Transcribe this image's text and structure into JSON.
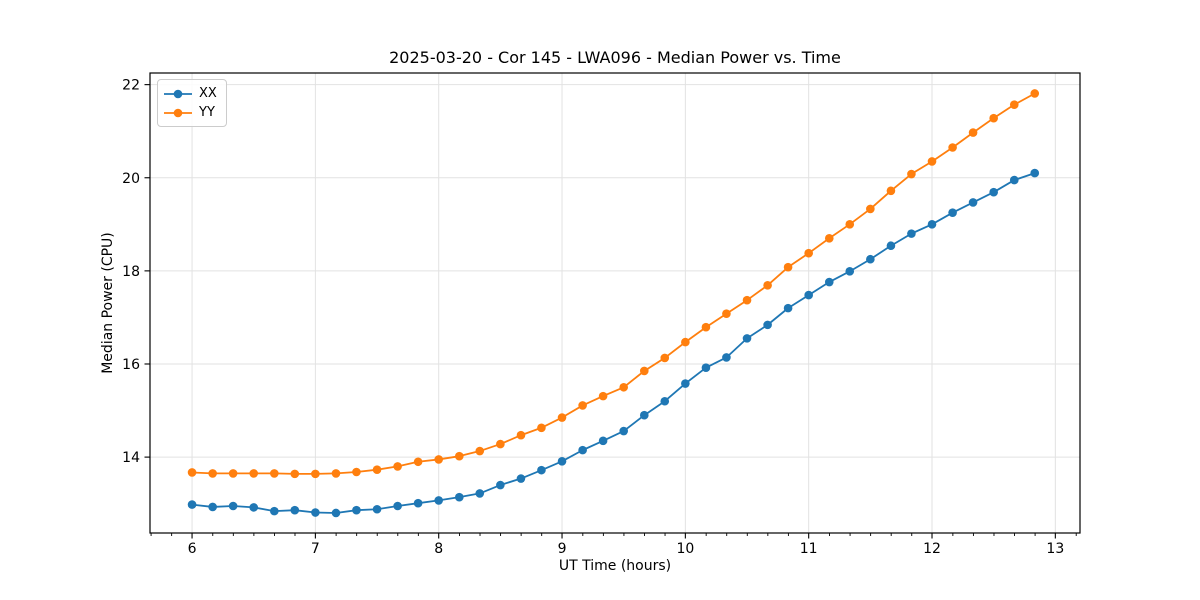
{
  "chart_data": {
    "type": "line",
    "title": "2025-03-20 - Cor 145 - LWA096 - Median Power vs. Time",
    "xlabel": "UT Time (hours)",
    "ylabel": "Median Power (CPU)",
    "grid": true,
    "legend_position": "upper left",
    "xlim": [
      5.659,
      13.2
    ],
    "ylim": [
      12.37,
      22.25
    ],
    "x_ticks": [
      6,
      7,
      8,
      9,
      10,
      11,
      12,
      13
    ],
    "y_ticks": [
      14,
      16,
      18,
      20,
      22
    ],
    "x_minor_tick_step": 0.1667,
    "x": [
      6.0,
      6.167,
      6.333,
      6.5,
      6.667,
      6.833,
      7.0,
      7.167,
      7.333,
      7.5,
      7.667,
      7.833,
      8.0,
      8.167,
      8.333,
      8.5,
      8.667,
      8.833,
      9.0,
      9.167,
      9.333,
      9.5,
      9.667,
      9.833,
      10.0,
      10.167,
      10.333,
      10.5,
      10.667,
      10.833,
      11.0,
      11.167,
      11.333,
      11.5,
      11.667,
      11.833,
      12.0,
      12.167,
      12.333,
      12.5,
      12.667,
      12.833
    ],
    "series": [
      {
        "name": "XX",
        "color": "#1f77b4",
        "values": [
          12.98,
          12.93,
          12.95,
          12.92,
          12.84,
          12.86,
          12.81,
          12.8,
          12.86,
          12.88,
          12.95,
          13.01,
          13.07,
          13.14,
          13.22,
          13.4,
          13.54,
          13.72,
          13.91,
          14.15,
          14.35,
          14.56,
          14.9,
          15.2,
          15.58,
          15.92,
          16.14,
          16.55,
          16.84,
          17.2,
          17.48,
          17.76,
          17.99,
          18.25,
          18.54,
          18.8,
          19.0,
          19.25,
          19.47,
          19.69,
          19.95,
          20.1
        ]
      },
      {
        "name": "YY",
        "color": "#ff7f0e",
        "values": [
          13.67,
          13.65,
          13.65,
          13.65,
          13.65,
          13.64,
          13.64,
          13.65,
          13.68,
          13.73,
          13.8,
          13.9,
          13.95,
          14.02,
          14.13,
          14.28,
          14.47,
          14.63,
          14.85,
          15.11,
          15.31,
          15.5,
          15.85,
          16.13,
          16.47,
          16.79,
          17.08,
          17.37,
          17.69,
          18.08,
          18.38,
          18.7,
          19.0,
          19.33,
          19.72,
          20.08,
          20.35,
          20.65,
          20.97,
          21.28,
          21.57,
          21.81
        ]
      }
    ],
    "style": {
      "grid_color": "#e2e2e2",
      "spine_color": "#000000",
      "background": "#ffffff",
      "marker_radius": 4.3,
      "line_width": 1.8
    }
  }
}
